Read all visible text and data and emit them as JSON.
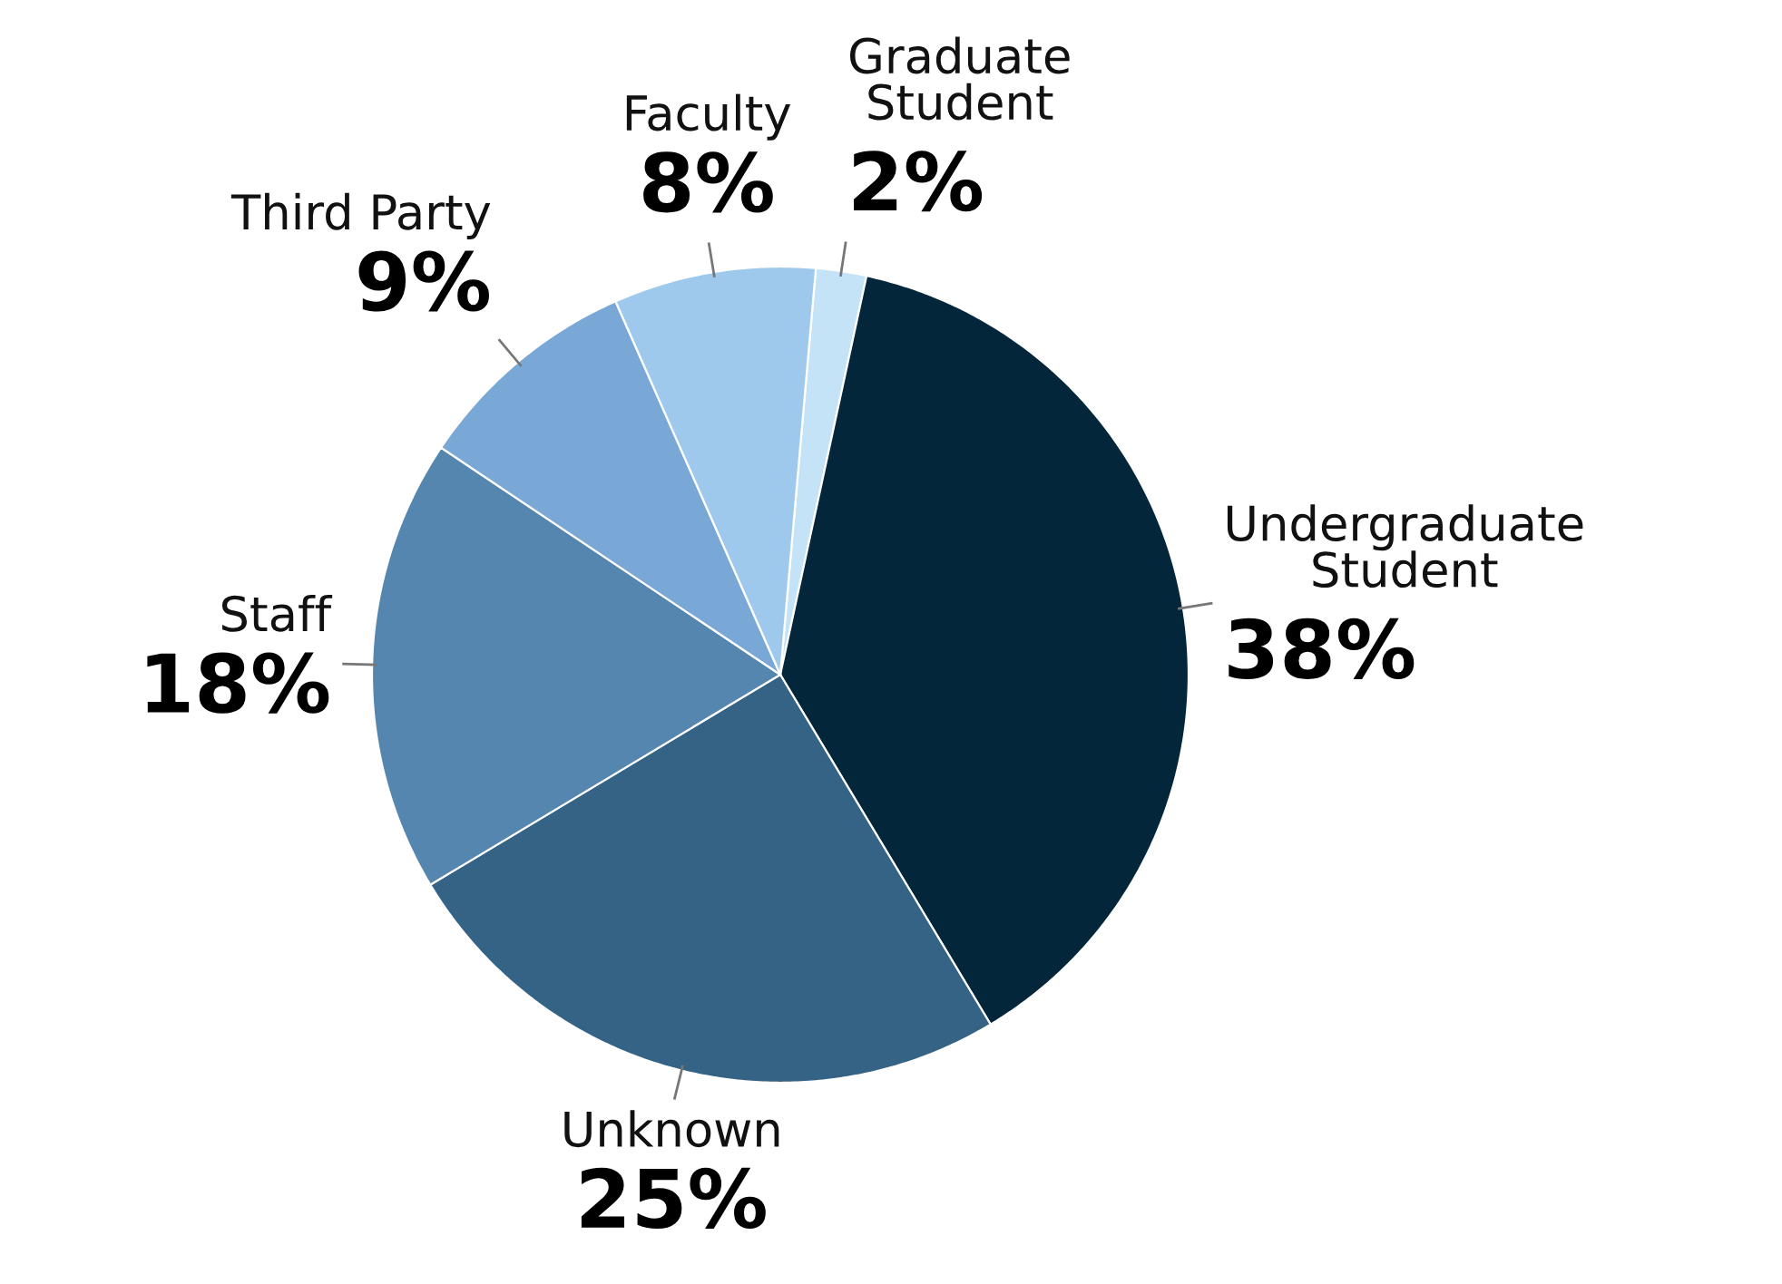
{
  "chart_data": {
    "type": "pie",
    "categories": [
      "Graduate\nStudent",
      "Undergraduate\nStudent",
      "Unknown",
      "Staff",
      "Third Party",
      "Faculty"
    ],
    "values": [
      2,
      38,
      25,
      18,
      9,
      8
    ],
    "colors": [
      "#c5e3f6",
      "#04263a",
      "#356386",
      "#5586b0",
      "#7aa8d6",
      "#9fc9ec"
    ],
    "value_labels": [
      "2%",
      "38%",
      "25%",
      "18%",
      "9%",
      "8%"
    ]
  }
}
